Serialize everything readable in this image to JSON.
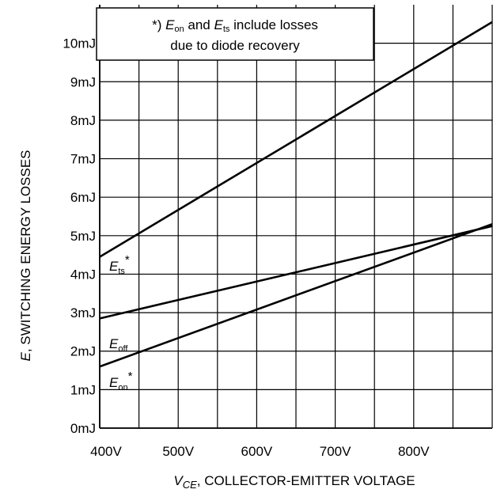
{
  "chart_data": {
    "type": "line",
    "title": "",
    "xlabel": {
      "symbol": "V",
      "subscript": "CE",
      "text": ", COLLECTOR-EMITTER VOLTAGE"
    },
    "ylabel": {
      "symbol": "E",
      "text": ", SWITCHING ENERGY LOSSES"
    },
    "xlim": [
      400,
      900
    ],
    "ylim": [
      0,
      11
    ],
    "x_ticks": [
      400,
      500,
      600,
      700,
      800
    ],
    "x_tick_labels": [
      "400V",
      "500V",
      "600V",
      "700V",
      "800V"
    ],
    "y_ticks": [
      0,
      1,
      2,
      3,
      4,
      5,
      6,
      7,
      8,
      9,
      10
    ],
    "y_tick_labels": [
      "0mJ",
      "1mJ",
      "2mJ",
      "3mJ",
      "4mJ",
      "5mJ",
      "6mJ",
      "7mJ",
      "8mJ",
      "9mJ",
      "10mJ"
    ],
    "grid": true,
    "series": [
      {
        "name": "E_ts*",
        "x": [
          400,
          900
        ],
        "y": [
          4.45,
          10.55
        ]
      },
      {
        "name": "E_off",
        "x": [
          400,
          900
        ],
        "y": [
          2.85,
          5.25
        ]
      },
      {
        "name": "E_on*",
        "x": [
          400,
          900
        ],
        "y": [
          1.6,
          5.3
        ]
      }
    ],
    "series_labels": [
      {
        "base": "E",
        "sub": "ts",
        "star": "*"
      },
      {
        "base": "E",
        "sub": "off",
        "star": ""
      },
      {
        "base": "E",
        "sub": "on",
        "star": "*"
      }
    ],
    "annotation": {
      "lines": [
        {
          "prefix": "*) ",
          "e1": "E",
          "s1": "on",
          "mid": " and ",
          "e2": "E",
          "s2": "ts",
          "suffix": " include losses"
        },
        {
          "text": "due to diode recovery"
        }
      ]
    }
  }
}
